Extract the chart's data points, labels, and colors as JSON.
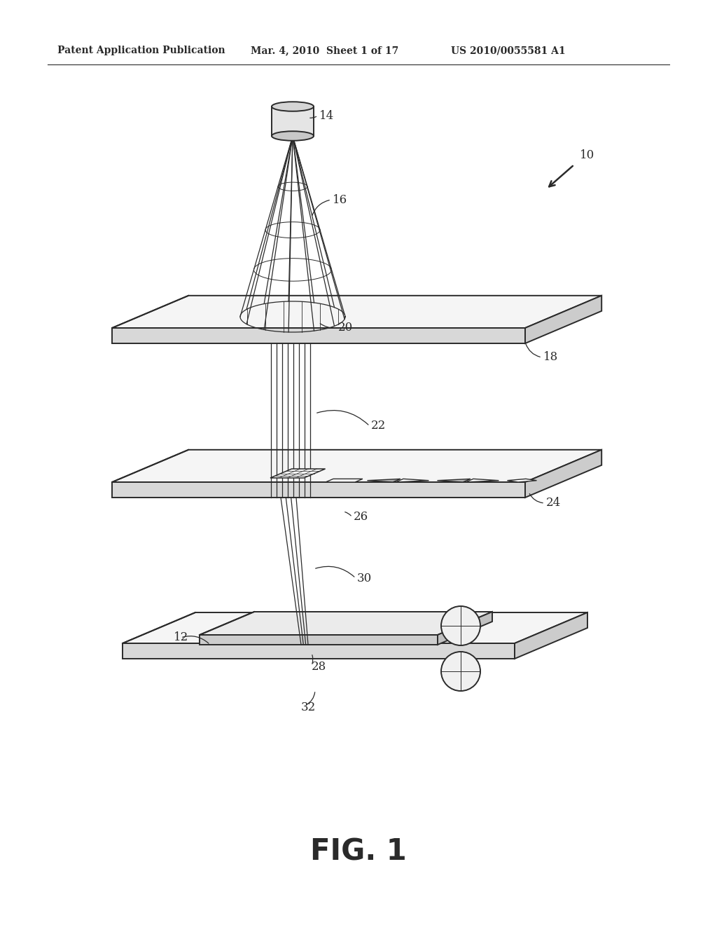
{
  "bg_color": "#ffffff",
  "line_color": "#2a2a2a",
  "title": "FIG. 1",
  "header_left": "Patent Application Publication",
  "header_mid": "Mar. 4, 2010  Sheet 1 of 17",
  "header_right": "US 2010/0055581 A1"
}
